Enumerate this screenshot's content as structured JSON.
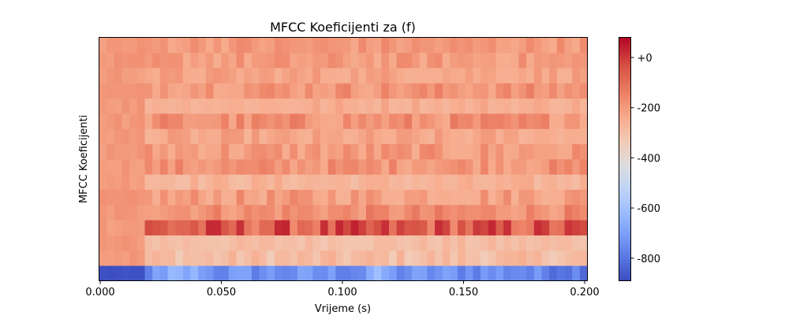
{
  "chart_data": {
    "type": "heatmap",
    "title": "MFCC Koeficijenti za (f)",
    "xlabel": "Vrijeme (s)",
    "ylabel": "MFCC Koeficijenti",
    "xlim": [
      0.0,
      0.2
    ],
    "x_ticks": [
      "0.000",
      "0.050",
      "0.100",
      "0.150",
      "0.200"
    ],
    "x_tick_values": [
      0.0,
      0.05,
      0.1,
      0.15,
      0.2
    ],
    "n_frames": 64,
    "n_coefficients": 16,
    "colormap": "coolwarm",
    "colorbar": {
      "min": -890,
      "max": 80,
      "ticks": [
        "+0",
        "-200",
        "-400",
        "-600",
        "-800"
      ],
      "tick_values": [
        0,
        -200,
        -400,
        -600,
        -800
      ]
    },
    "coefficient_profiles": [
      {
        "coefficient": 1,
        "silence": -880,
        "active": -690,
        "active_range": [
          -760,
          -560
        ]
      },
      {
        "coefficient": 2,
        "silence": -20,
        "active": -110,
        "active_range": [
          -170,
          -20
        ]
      },
      {
        "coefficient": 3,
        "silence": -20,
        "active": -110,
        "active_range": [
          -150,
          -60
        ]
      },
      {
        "coefficient": 4,
        "silence": -20,
        "active": 30,
        "active_range": [
          -20,
          70
        ]
      },
      {
        "coefficient": 5,
        "silence": -20,
        "active": -10,
        "active_range": [
          -40,
          20
        ]
      },
      {
        "coefficient": 6,
        "silence": -20,
        "active": -30,
        "active_range": [
          -70,
          10
        ]
      },
      {
        "coefficient": 7,
        "silence": -20,
        "active": -75,
        "active_range": [
          -120,
          -20
        ]
      },
      {
        "coefficient": 8,
        "silence": -20,
        "active": -15,
        "active_range": [
          -40,
          20
        ]
      },
      {
        "coefficient": 9,
        "silence": -20,
        "active": -25,
        "active_range": [
          -60,
          10
        ]
      },
      {
        "coefficient": 10,
        "silence": -20,
        "active": -45,
        "active_range": [
          -80,
          -10
        ]
      },
      {
        "coefficient": 11,
        "silence": -20,
        "active": -15,
        "active_range": [
          -50,
          20
        ]
      },
      {
        "coefficient": 12,
        "silence": -20,
        "active": -55,
        "active_range": [
          -90,
          -20
        ]
      },
      {
        "coefficient": 13,
        "silence": -20,
        "active": -15,
        "active_range": [
          -40,
          20
        ]
      },
      {
        "coefficient": 14,
        "silence": -20,
        "active": -35,
        "active_range": [
          -60,
          -5
        ]
      },
      {
        "coefficient": 15,
        "silence": -20,
        "active": -25,
        "active_range": [
          -50,
          5
        ]
      },
      {
        "coefficient": 16,
        "silence": -20,
        "active": -20,
        "active_range": [
          -45,
          5
        ]
      }
    ]
  }
}
